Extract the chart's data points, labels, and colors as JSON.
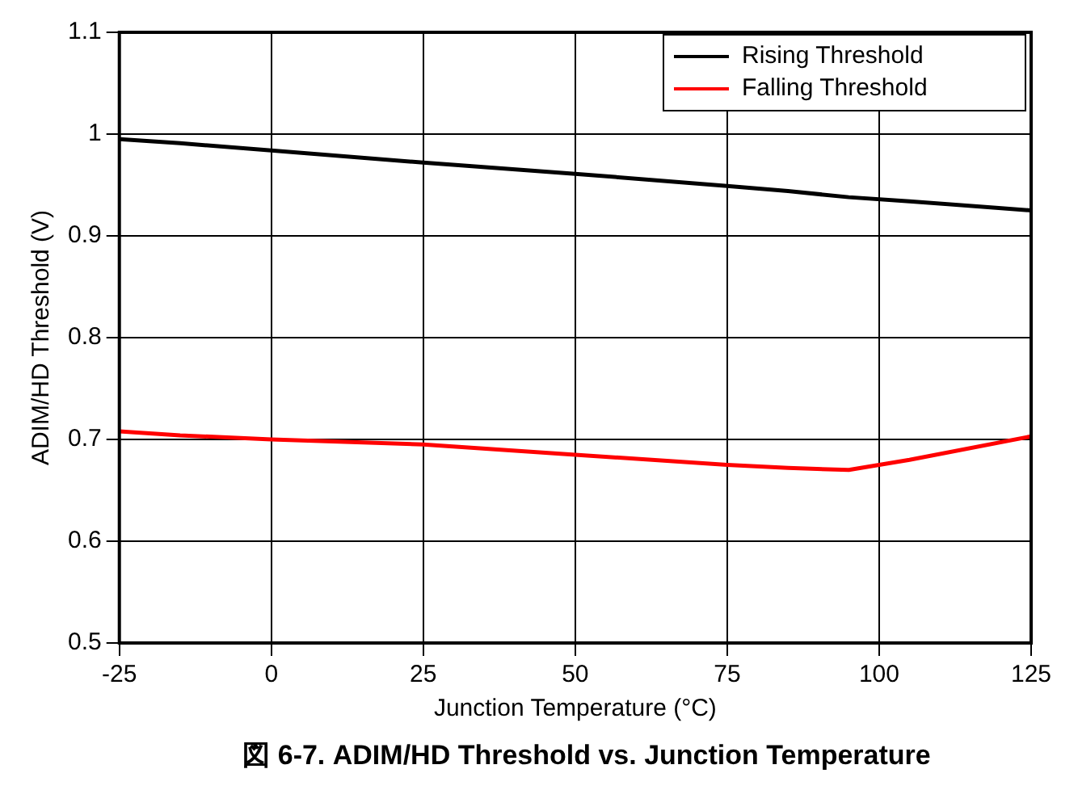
{
  "chart_data": {
    "type": "line",
    "xlabel": "Junction Temperature (°C)",
    "ylabel": "ADIM/HD Threshold (V)",
    "annotations": [
      "図 6-7. ADIM/HD Threshold vs. Junction Temperature"
    ],
    "x": [
      -25,
      -15,
      0,
      25,
      50,
      75,
      85,
      95,
      105,
      125
    ],
    "series": [
      {
        "name": "Rising Threshold",
        "color": "#000000",
        "values": [
          0.995,
          0.991,
          0.984,
          0.972,
          0.961,
          0.949,
          0.944,
          0.938,
          0.934,
          0.925
        ]
      },
      {
        "name": "Falling Threshold",
        "color": "#ff0000",
        "values": [
          0.708,
          0.704,
          0.7,
          0.695,
          0.685,
          0.675,
          0.672,
          0.67,
          0.68,
          0.703
        ]
      }
    ],
    "xlim": [
      -25,
      125
    ],
    "xticks": [
      -25,
      0,
      25,
      50,
      75,
      100,
      125
    ],
    "ylim": [
      0.5,
      1.1
    ],
    "yticks": [
      0.5,
      0.6,
      0.7,
      0.8,
      0.9,
      1,
      1.1
    ],
    "grid": true,
    "legend": "top right",
    "marker": "none",
    "line_style": "solid"
  }
}
